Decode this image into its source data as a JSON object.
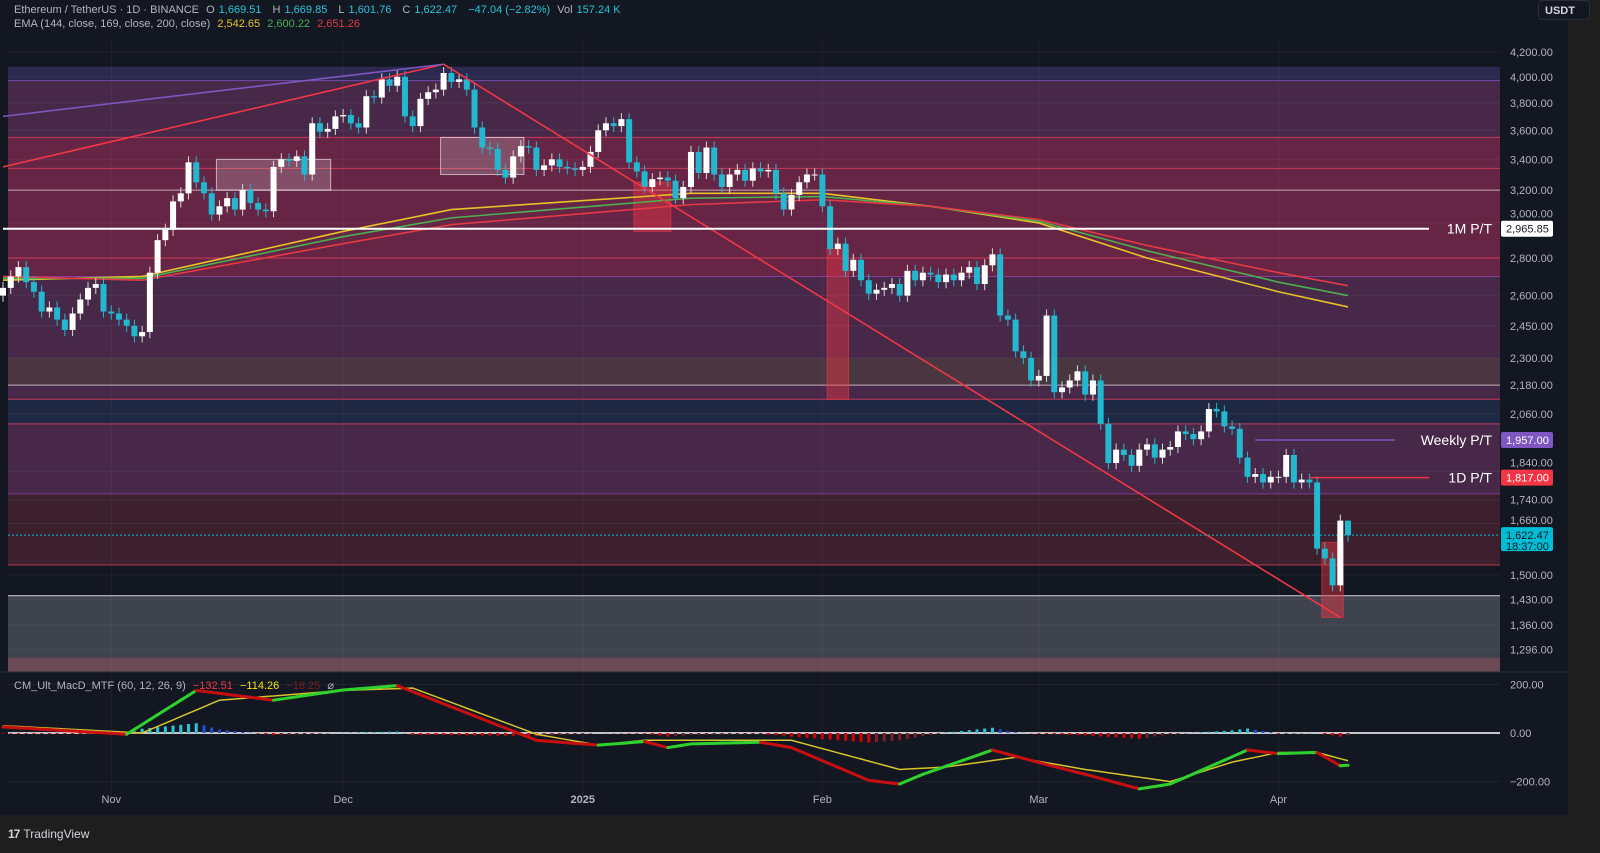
{
  "header": {
    "symbol": "Ethereum / TetherUS · 1D · BINANCE",
    "o_label": "O",
    "o": "1,669.51",
    "h_label": "H",
    "h": "1,669.85",
    "l_label": "L",
    "l": "1,601.76",
    "c_label": "C",
    "c": "1,622.47",
    "change": "−47.04 (−2.82%)",
    "vol_label": "Vol",
    "vol": "157.24 K",
    "ema_label": "EMA (144, close, 169, close, 200, close)",
    "ema144": "2,542.65",
    "ema169": "2,600.22",
    "ema200": "2,651.26",
    "currency_button": "USDT"
  },
  "macd_legend": {
    "label": "CM_Ult_MacD_MTF (60, 12, 26, 9)",
    "v1": "−132.51",
    "v2": "−114.26",
    "v3": "−18.25",
    "icon": "eye-off-icon"
  },
  "footer": {
    "logo_mark": "17",
    "brand": "TradingView"
  },
  "colors": {
    "background": "#131722",
    "up": "#ffffff",
    "down": "#22b8cf",
    "ema144": "#e6c229",
    "ema169": "#4caf50",
    "ema200": "#e53945",
    "macd_up": "#2ed12e",
    "macd_down": "#c80e0e",
    "signal": "#d4c52a",
    "trend_red": "#f23645",
    "trend_purple": "#7e57c2"
  },
  "chart_data": {
    "type": "candlestick",
    "scale": "log",
    "grid": true,
    "ylim": [
      1270,
      4300
    ],
    "candles": [
      {
        "month": "2024-10",
        "first_day": 18,
        "closes": [
          2640,
          2700,
          2750,
          2670,
          2620,
          2520,
          2540,
          2480,
          2430,
          2510,
          2580,
          2640,
          2660,
          2520
        ]
      },
      {
        "month": "2024-11",
        "first_day": 1,
        "closes": [
          2510,
          2480,
          2450,
          2400,
          2420,
          2720,
          2900,
          2960,
          3130,
          3180,
          3380,
          3250,
          3180,
          3050,
          3100,
          3150,
          3080,
          3200,
          3120,
          3080,
          3070,
          3350,
          3400,
          3390,
          3420,
          3300,
          3650,
          3590,
          3610,
          3700
        ]
      },
      {
        "month": "2024-12",
        "first_day": 1,
        "closes": [
          3710,
          3650,
          3620,
          3850,
          3840,
          3980,
          3930,
          4000,
          3700,
          3630,
          3830,
          3880,
          3900,
          4030,
          3960,
          3980,
          3900,
          3620,
          3480,
          3470,
          3330,
          3280,
          3420,
          3490,
          3480,
          3330,
          3360,
          3400,
          3350,
          3340,
          3330
        ]
      },
      {
        "month": "2025-01",
        "first_day": 1,
        "closes": [
          3350,
          3450,
          3600,
          3650,
          3630,
          3680,
          3380,
          3320,
          3220,
          3270,
          3280,
          3260,
          3150,
          3220,
          3450,
          3310,
          3480,
          3300,
          3220,
          3300,
          3330,
          3260,
          3340,
          3320,
          3330,
          3180,
          3080,
          3170,
          3250,
          3300,
          3300
        ]
      },
      {
        "month": "2025-02",
        "first_day": 1,
        "closes": [
          3100,
          2850,
          2880,
          2730,
          2790,
          2680,
          2610,
          2630,
          2640,
          2660,
          2600,
          2730,
          2680,
          2720,
          2710,
          2670,
          2710,
          2680,
          2720,
          2750,
          2660,
          2760,
          2820,
          2500,
          2480,
          2330,
          2300,
          2200
        ]
      },
      {
        "month": "2025-03",
        "first_day": 1,
        "closes": [
          2220,
          2500,
          2150,
          2170,
          2200,
          2240,
          2140,
          2200,
          2020,
          1870,
          1920,
          1900,
          1860,
          1920,
          1940,
          1890,
          1920,
          1930,
          1990,
          1980,
          1960,
          1990,
          2080,
          2070,
          2010,
          2000,
          1890,
          1820,
          1830,
          1800,
          1820
        ]
      },
      {
        "month": "2025-04",
        "first_day": 1,
        "closes": [
          1820,
          1900,
          1800,
          1810,
          1800,
          1580,
          1550,
          1470,
          1669.51,
          1622.47
        ]
      }
    ],
    "last_candle": {
      "open": 1669.51,
      "high": 1669.85,
      "low": 1601.76,
      "close": 1622.47
    },
    "ema_series": [
      {
        "name": "EMA 144",
        "color": "#e6c229",
        "points": [
          [
            "2024-10-18",
            2680
          ],
          [
            "2024-11-05",
            2700
          ],
          [
            "2024-12-01",
            2950
          ],
          [
            "2024-12-15",
            3080
          ],
          [
            "2025-01-15",
            3180
          ],
          [
            "2025-02-01",
            3180
          ],
          [
            "2025-02-15",
            3100
          ],
          [
            "2025-03-01",
            3000
          ],
          [
            "2025-03-15",
            2800
          ],
          [
            "2025-04-01",
            2620
          ],
          [
            "2025-04-10",
            2542.65
          ]
        ]
      },
      {
        "name": "EMA 169",
        "color": "#4caf50",
        "points": [
          [
            "2024-10-18",
            2690
          ],
          [
            "2024-11-05",
            2690
          ],
          [
            "2024-12-01",
            2920
          ],
          [
            "2024-12-15",
            3030
          ],
          [
            "2025-01-15",
            3150
          ],
          [
            "2025-02-01",
            3160
          ],
          [
            "2025-02-15",
            3100
          ],
          [
            "2025-03-01",
            3010
          ],
          [
            "2025-03-15",
            2840
          ],
          [
            "2025-04-01",
            2670
          ],
          [
            "2025-04-10",
            2600.22
          ]
        ]
      },
      {
        "name": "EMA 200",
        "color": "#e53945",
        "points": [
          [
            "2024-10-18",
            2700
          ],
          [
            "2024-11-05",
            2680
          ],
          [
            "2024-12-01",
            2880
          ],
          [
            "2024-12-15",
            2990
          ],
          [
            "2025-01-15",
            3110
          ],
          [
            "2025-02-01",
            3140
          ],
          [
            "2025-02-15",
            3100
          ],
          [
            "2025-03-01",
            3020
          ],
          [
            "2025-03-15",
            2870
          ],
          [
            "2025-04-01",
            2720
          ],
          [
            "2025-04-10",
            2651.26
          ]
        ]
      }
    ],
    "zones": [
      {
        "from": 4080,
        "to": 3970,
        "color": "#2c2850"
      },
      {
        "from": 3970,
        "to": 3550,
        "color": "#472849"
      },
      {
        "from": 3550,
        "to": 2700,
        "color": "#662545"
      },
      {
        "from": 2700,
        "to": 2120,
        "color": "#472849"
      },
      {
        "from": 2300,
        "to": 2180,
        "color": "#4a3640"
      },
      {
        "from": 2120,
        "to": 2020,
        "color": "#1f2842"
      },
      {
        "from": 2020,
        "to": 1760,
        "color": "#472849"
      },
      {
        "from": 1760,
        "to": 1530,
        "color": "#3c202d"
      },
      {
        "from": 1440,
        "to": 1275,
        "color": "#3f434d"
      },
      {
        "from": 1275,
        "to": 1240,
        "color": "#6a4a55"
      }
    ],
    "levels": [
      {
        "price": 3970,
        "color": "#7e57c2"
      },
      {
        "price": 3550,
        "color": "#e0405a"
      },
      {
        "price": 3340,
        "color": "#e0405a"
      },
      {
        "price": 3200,
        "color": "#d8c8d0"
      },
      {
        "price": 2800,
        "color": "#e0405a"
      },
      {
        "price": 2700,
        "color": "#8e44ad"
      },
      {
        "price": 2180,
        "color": "#d8c8d0"
      },
      {
        "price": 2120,
        "color": "#e0405a"
      },
      {
        "price": 2020,
        "color": "#e0405a"
      },
      {
        "price": 1760,
        "color": "#8e44ad"
      },
      {
        "price": 1530,
        "color": "#e0405a"
      },
      {
        "price": 1440,
        "color": "#ffffff"
      }
    ],
    "targets": [
      {
        "label": "1M P/T",
        "price": 2965.85,
        "price_label": "2,965.85",
        "color": "#ffffff",
        "text_color": "#131722",
        "from": "2024-10-18"
      },
      {
        "label": "Weekly P/T",
        "price": 1957,
        "price_label": "1,957.00",
        "color": "#7e57c2",
        "text_color": "#ffffff",
        "from": "2025-03-29"
      },
      {
        "label": "1D P/T",
        "price": 1817,
        "price_label": "1,817.00",
        "color": "#f23645",
        "text_color": "#ffffff",
        "from": "2025-04-05"
      }
    ],
    "last_price": {
      "label": "1,622.47",
      "countdown": "18:37:00",
      "color": "#00bcd4"
    },
    "trendlines": [
      {
        "color": "#f23645",
        "from": [
          "2024-10-18",
          3350
        ],
        "to": [
          "2024-12-14",
          4100
        ]
      },
      {
        "color": "#7e57c2",
        "from": [
          "2024-10-18",
          3700
        ],
        "to": [
          "2024-12-14",
          4100
        ]
      },
      {
        "color": "#f23645",
        "from": [
          "2024-12-14",
          4100
        ],
        "to": [
          "2025-04-09",
          1380
        ]
      }
    ],
    "boxes": [
      {
        "from": "2025-01-08",
        "to": "2025-01-12",
        "top": 3250,
        "bottom": 2950,
        "color": "#f2364570"
      },
      {
        "from": "2025-02-02",
        "to": "2025-02-04",
        "top": 2850,
        "bottom": 2120,
        "color": "#f2364570"
      },
      {
        "from": "2025-04-07",
        "to": "2025-04-09",
        "top": 1600,
        "bottom": 1380,
        "color": "#f2364570"
      },
      {
        "from": "2024-11-15",
        "to": "2024-11-29",
        "top": 3400,
        "bottom": 3200,
        "color": "#ffffff30"
      },
      {
        "from": "2024-12-14",
        "to": "2024-12-24",
        "top": 3550,
        "bottom": 3300,
        "color": "#ffffff30"
      }
    ],
    "price_ticks": [
      "4,200.00",
      "4,000.00",
      "3,800.00",
      "3,600.00",
      "3,400.00",
      "3,200.00",
      "3,000.00",
      "2,800.00",
      "2,600.00",
      "2,450.00",
      "2,300.00",
      "2,180.00",
      "2,060.00",
      "1,840.00",
      "1,740.00",
      "1,660.00",
      "1,500.00",
      "1,430.00",
      "1,360.00",
      "1,296.00"
    ],
    "price_tick_values": [
      4200,
      4000,
      3800,
      3600,
      3400,
      3200,
      3000,
      2800,
      2600,
      2450,
      2300,
      2180,
      2060,
      1840,
      1740,
      1660,
      1500,
      1430,
      1360,
      1296
    ],
    "time_ticks": [
      {
        "label": "Nov",
        "date": "2024-11-01"
      },
      {
        "label": "Dec",
        "date": "2024-12-01"
      },
      {
        "label": "2025",
        "date": "2025-01-01"
      },
      {
        "label": "Feb",
        "date": "2025-02-01"
      },
      {
        "label": "Mar",
        "date": "2025-03-01"
      },
      {
        "label": "Apr",
        "date": "2025-04-01"
      }
    ],
    "macd": {
      "ticks": [
        "200.00",
        "0.00",
        "−200.00"
      ],
      "tick_values": [
        200,
        0,
        -200
      ],
      "macd_line": [
        [
          "2024-10-18",
          25
        ],
        [
          "2024-11-03",
          -5
        ],
        [
          "2024-11-12",
          175
        ],
        [
          "2024-11-22",
          135
        ],
        [
          "2024-12-01",
          177
        ],
        [
          "2024-12-08",
          195
        ],
        [
          "2024-12-26",
          -30
        ],
        [
          "2025-01-03",
          -50
        ],
        [
          "2025-01-09",
          -35
        ],
        [
          "2025-01-12",
          -60
        ],
        [
          "2025-01-15",
          -45
        ],
        [
          "2025-01-24",
          -38
        ],
        [
          "2025-01-28",
          -60
        ],
        [
          "2025-02-07",
          -195
        ],
        [
          "2025-02-11",
          -210
        ],
        [
          "2025-02-14",
          -170
        ],
        [
          "2025-02-23",
          -70
        ],
        [
          "2025-03-02",
          -130
        ],
        [
          "2025-03-07",
          -170
        ],
        [
          "2025-03-14",
          -230
        ],
        [
          "2025-03-18",
          -210
        ],
        [
          "2025-03-28",
          -70
        ],
        [
          "2025-04-01",
          -85
        ],
        [
          "2025-04-06",
          -80
        ],
        [
          "2025-04-09",
          -135
        ],
        [
          "2025-04-10",
          -132.51
        ]
      ],
      "signal_line": [
        [
          "2024-10-18",
          30
        ],
        [
          "2024-11-05",
          0
        ],
        [
          "2024-11-15",
          135
        ],
        [
          "2024-12-01",
          175
        ],
        [
          "2024-12-10",
          185
        ],
        [
          "2024-12-26",
          -5
        ],
        [
          "2025-01-03",
          -50
        ],
        [
          "2025-01-09",
          -30
        ],
        [
          "2025-01-28",
          -30
        ],
        [
          "2025-02-11",
          -150
        ],
        [
          "2025-02-17",
          -140
        ],
        [
          "2025-02-26",
          -100
        ],
        [
          "2025-03-07",
          -150
        ],
        [
          "2025-03-18",
          -200
        ],
        [
          "2025-03-26",
          -120
        ],
        [
          "2025-04-01",
          -80
        ],
        [
          "2025-04-06",
          -80
        ],
        [
          "2025-04-10",
          -114.26
        ]
      ]
    }
  }
}
